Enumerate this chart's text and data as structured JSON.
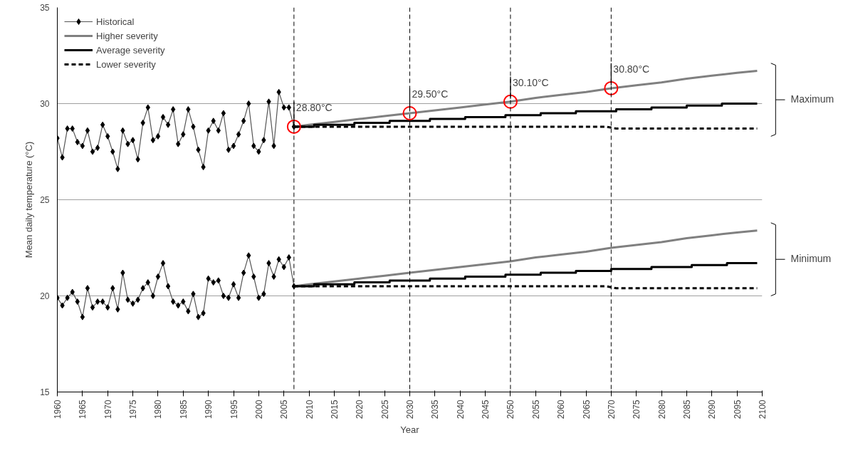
{
  "chart_data": {
    "type": "line",
    "xlabel": "Year",
    "ylabel": "Mean daily temperature (°C)",
    "xlim": [
      1960,
      2100
    ],
    "xticks": [
      1960,
      1965,
      1970,
      1975,
      1980,
      1985,
      1990,
      1995,
      2000,
      2005,
      2010,
      2015,
      2020,
      2025,
      2030,
      2035,
      2040,
      2045,
      2050,
      2055,
      2060,
      2065,
      2070,
      2075,
      2080,
      2085,
      2090,
      2095,
      2100
    ],
    "ylim": [
      15,
      35
    ],
    "yticks": [
      15,
      20,
      25,
      30,
      35
    ],
    "grid": "y",
    "legend": "top left",
    "marker": "none",
    "line_style": "solid",
    "series": [
      {
        "name": "Historical",
        "color": "#000000",
        "marker": "diamond",
        "x": [
          1960,
          1961,
          1962,
          1963,
          1964,
          1965,
          1966,
          1967,
          1968,
          1969,
          1970,
          1971,
          1972,
          1973,
          1974,
          1975,
          1976,
          1977,
          1978,
          1979,
          1980,
          1981,
          1982,
          1983,
          1984,
          1985,
          1986,
          1987,
          1988,
          1989,
          1990,
          1991,
          1992,
          1993,
          1994,
          1995,
          1996,
          1997,
          1998,
          1999,
          2000,
          2001,
          2002,
          2003,
          2004,
          2005,
          2006,
          2007
        ],
        "values": [
          28.2,
          27.2,
          28.7,
          28.7,
          28.0,
          27.8,
          28.6,
          27.5,
          27.7,
          28.9,
          28.3,
          27.5,
          26.6,
          28.6,
          27.9,
          28.1,
          27.1,
          29.0,
          29.8,
          28.1,
          28.3,
          29.3,
          28.9,
          29.7,
          27.9,
          28.4,
          29.7,
          28.8,
          27.6,
          26.7,
          28.6,
          29.1,
          28.6,
          29.5,
          27.6,
          27.8,
          28.4,
          29.1,
          30.0,
          27.8,
          27.5,
          28.1,
          30.1,
          27.8,
          30.6,
          29.8,
          29.8,
          28.8
        ]
      },
      {
        "name": "Higher severity",
        "color": "#808080",
        "x": [
          2007,
          2010,
          2015,
          2020,
          2025,
          2030,
          2035,
          2040,
          2045,
          2050,
          2055,
          2060,
          2065,
          2070,
          2075,
          2080,
          2085,
          2090,
          2095,
          2099
        ],
        "values": [
          28.8,
          28.9,
          29.05,
          29.2,
          29.35,
          29.5,
          29.65,
          29.8,
          29.95,
          30.1,
          30.3,
          30.45,
          30.6,
          30.8,
          30.95,
          31.1,
          31.3,
          31.45,
          31.6,
          31.7
        ]
      },
      {
        "name": "Average severity",
        "type": "step",
        "color": "#000000",
        "x": [
          2007,
          2011,
          2019,
          2026,
          2034,
          2041,
          2049,
          2056,
          2063,
          2071,
          2078,
          2085,
          2092,
          2099
        ],
        "values": [
          28.8,
          28.9,
          29.0,
          29.1,
          29.2,
          29.3,
          29.4,
          29.5,
          29.6,
          29.7,
          29.8,
          29.9,
          30.0,
          30.0
        ]
      },
      {
        "name": "Lower severity",
        "color": "#000000",
        "line_style": "dashed",
        "x": [
          2007,
          2069,
          2071,
          2099
        ],
        "values": [
          28.8,
          28.8,
          28.7,
          28.7
        ]
      },
      {
        "color": "#000000",
        "marker": "diamond",
        "x": [
          1960,
          1961,
          1962,
          1963,
          1964,
          1965,
          1966,
          1967,
          1968,
          1969,
          1970,
          1971,
          1972,
          1973,
          1974,
          1975,
          1976,
          1977,
          1978,
          1979,
          1980,
          1981,
          1982,
          1983,
          1984,
          1985,
          1986,
          1987,
          1988,
          1989,
          1990,
          1991,
          1992,
          1993,
          1994,
          1995,
          1996,
          1997,
          1998,
          1999,
          2000,
          2001,
          2002,
          2003,
          2004,
          2005,
          2006,
          2007
        ],
        "values": [
          19.9,
          19.5,
          19.9,
          20.2,
          19.7,
          18.9,
          20.4,
          19.4,
          19.7,
          19.7,
          19.4,
          20.4,
          19.3,
          21.2,
          19.8,
          19.6,
          19.8,
          20.4,
          20.7,
          20.0,
          21.0,
          21.7,
          20.5,
          19.7,
          19.5,
          19.7,
          19.2,
          20.1,
          18.9,
          19.1,
          20.9,
          20.7,
          20.8,
          20.0,
          19.9,
          20.6,
          19.9,
          21.2,
          22.1,
          21.0,
          19.9,
          20.1,
          21.7,
          21.0,
          21.9,
          21.5,
          22.0,
          20.5
        ]
      },
      {
        "color": "#808080",
        "x": [
          2007,
          2010,
          2015,
          2020,
          2025,
          2030,
          2035,
          2040,
          2045,
          2050,
          2055,
          2060,
          2065,
          2070,
          2075,
          2080,
          2085,
          2090,
          2095,
          2099
        ],
        "values": [
          20.5,
          20.6,
          20.75,
          20.9,
          21.05,
          21.2,
          21.35,
          21.5,
          21.65,
          21.8,
          22.0,
          22.15,
          22.3,
          22.5,
          22.65,
          22.8,
          23.0,
          23.15,
          23.3,
          23.4
        ]
      },
      {
        "type": "step",
        "color": "#000000",
        "x": [
          2007,
          2011,
          2019,
          2026,
          2034,
          2041,
          2049,
          2056,
          2063,
          2070,
          2078,
          2086,
          2093,
          2099
        ],
        "values": [
          20.5,
          20.6,
          20.7,
          20.8,
          20.9,
          21.0,
          21.1,
          21.2,
          21.3,
          21.4,
          21.5,
          21.6,
          21.7,
          21.7
        ]
      },
      {
        "color": "#000000",
        "line_style": "dashed",
        "x": [
          2007,
          2069,
          2071,
          2099
        ],
        "values": [
          20.5,
          20.5,
          20.4,
          20.4
        ]
      }
    ],
    "ref_lines": [
      {
        "axis": "x",
        "value": 2007,
        "label": null,
        "line_style": "dashed",
        "color": "#000000"
      },
      {
        "axis": "x",
        "value": 2030,
        "label": null,
        "line_style": "dashed",
        "color": "#000000"
      },
      {
        "axis": "x",
        "value": 2050,
        "label": null,
        "line_style": "dashed",
        "color": "#000000"
      },
      {
        "axis": "x",
        "value": 2070,
        "label": null,
        "line_style": "dashed",
        "color": "#000000"
      }
    ],
    "annotations": [
      {
        "text": "28.80°C",
        "x": 2007,
        "y": 28.8
      },
      {
        "text": "29.50°C",
        "x": 2030,
        "y": 29.5
      },
      {
        "text": "30.10°C",
        "x": 2050,
        "y": 30.1
      },
      {
        "text": "30.80°C",
        "x": 2070,
        "y": 30.8
      },
      "Maximum",
      "Minimum"
    ]
  }
}
